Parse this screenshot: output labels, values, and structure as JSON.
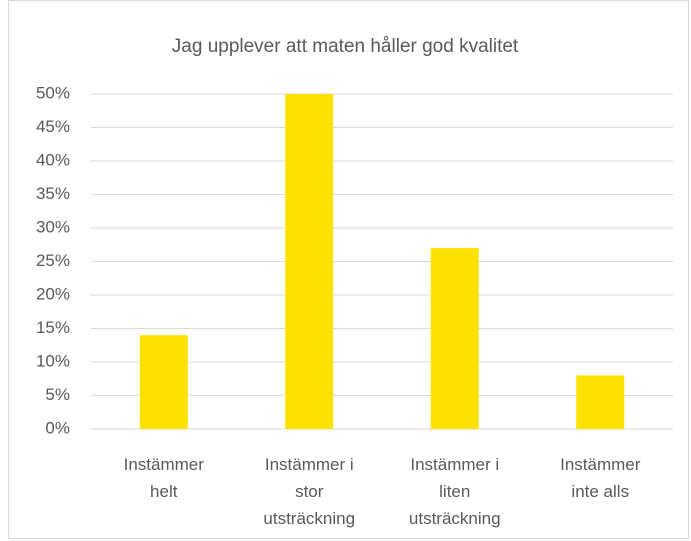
{
  "chart_data": {
    "type": "bar",
    "title": "Jag upplever att maten håller god kvalitet",
    "categories": [
      "Instämmer helt",
      "Instämmer i stor utsträckning",
      "Instämmer i liten utsträckning",
      "Instämmer inte alls"
    ],
    "values": [
      14,
      50,
      27,
      8
    ],
    "color": "#ffe100",
    "ylim": [
      0,
      50
    ],
    "yticks": [
      {
        "value": 0,
        "label": "0%"
      },
      {
        "value": 5,
        "label": "5%"
      },
      {
        "value": 10,
        "label": "10%"
      },
      {
        "value": 15,
        "label": "15%"
      },
      {
        "value": 20,
        "label": "20%"
      },
      {
        "value": 25,
        "label": "25%"
      },
      {
        "value": 30,
        "label": "30%"
      },
      {
        "value": 35,
        "label": "35%"
      },
      {
        "value": 40,
        "label": "40%"
      },
      {
        "value": 45,
        "label": "45%"
      },
      {
        "value": 50,
        "label": "50%"
      }
    ],
    "grid": true
  }
}
